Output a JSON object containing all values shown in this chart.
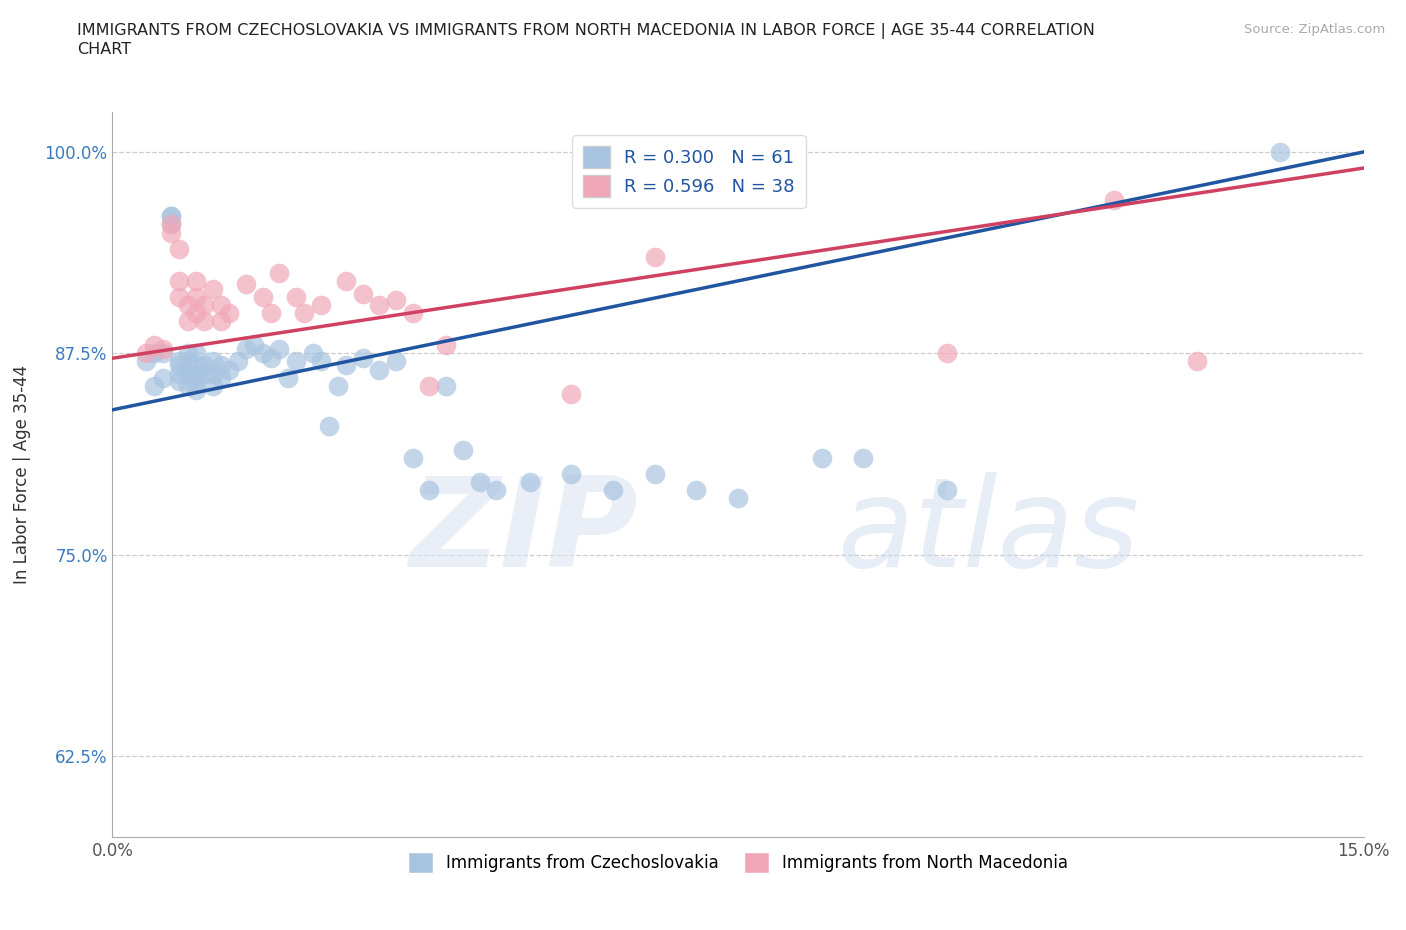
{
  "title": "IMMIGRANTS FROM CZECHOSLOVAKIA VS IMMIGRANTS FROM NORTH MACEDONIA IN LABOR FORCE | AGE 35-44 CORRELATION\nCHART",
  "source": "Source: ZipAtlas.com",
  "ylabel": "In Labor Force | Age 35-44",
  "xlim": [
    0.0,
    0.15
  ],
  "ylim": [
    0.575,
    1.025
  ],
  "yticks": [
    0.625,
    0.75,
    0.875,
    1.0
  ],
  "ytick_labels": [
    "62.5%",
    "75.0%",
    "87.5%",
    "100.0%"
  ],
  "xticks": [
    0.0,
    0.03,
    0.06,
    0.09,
    0.12,
    0.15
  ],
  "xtick_labels": [
    "0.0%",
    "",
    "",
    "",
    "",
    "15.0%"
  ],
  "blue_R": 0.3,
  "blue_N": 61,
  "pink_R": 0.596,
  "pink_N": 38,
  "blue_color": "#a8c4e0",
  "pink_color": "#f0a8b8",
  "blue_line_color": "#2255a0",
  "pink_line_color": "#d04060",
  "legend_text_color": "#2255a0",
  "blue_x": [
    0.004,
    0.005,
    0.005,
    0.006,
    0.006,
    0.007,
    0.007,
    0.007,
    0.008,
    0.008,
    0.008,
    0.008,
    0.009,
    0.009,
    0.009,
    0.009,
    0.01,
    0.01,
    0.01,
    0.01,
    0.01,
    0.011,
    0.011,
    0.012,
    0.012,
    0.012,
    0.013,
    0.013,
    0.014,
    0.015,
    0.016,
    0.017,
    0.018,
    0.019,
    0.02,
    0.021,
    0.022,
    0.024,
    0.025,
    0.026,
    0.027,
    0.028,
    0.03,
    0.032,
    0.034,
    0.036,
    0.038,
    0.04,
    0.042,
    0.044,
    0.046,
    0.05,
    0.055,
    0.06,
    0.065,
    0.07,
    0.075,
    0.085,
    0.09,
    0.1,
    0.14
  ],
  "blue_y": [
    0.87,
    0.875,
    0.855,
    0.875,
    0.86,
    0.96,
    0.955,
    0.96,
    0.87,
    0.868,
    0.862,
    0.858,
    0.875,
    0.87,
    0.862,
    0.855,
    0.875,
    0.868,
    0.862,
    0.858,
    0.852,
    0.868,
    0.862,
    0.87,
    0.862,
    0.855,
    0.868,
    0.86,
    0.865,
    0.87,
    0.878,
    0.88,
    0.875,
    0.872,
    0.878,
    0.86,
    0.87,
    0.875,
    0.87,
    0.83,
    0.855,
    0.868,
    0.872,
    0.865,
    0.87,
    0.81,
    0.79,
    0.855,
    0.815,
    0.795,
    0.79,
    0.795,
    0.8,
    0.79,
    0.8,
    0.79,
    0.785,
    0.81,
    0.81,
    0.79,
    1.0
  ],
  "pink_x": [
    0.004,
    0.005,
    0.006,
    0.007,
    0.007,
    0.008,
    0.008,
    0.008,
    0.009,
    0.009,
    0.01,
    0.01,
    0.01,
    0.011,
    0.011,
    0.012,
    0.013,
    0.013,
    0.014,
    0.016,
    0.018,
    0.019,
    0.02,
    0.022,
    0.023,
    0.025,
    0.028,
    0.03,
    0.032,
    0.034,
    0.036,
    0.038,
    0.04,
    0.055,
    0.065,
    0.1,
    0.12,
    0.13
  ],
  "pink_y": [
    0.875,
    0.88,
    0.878,
    0.955,
    0.95,
    0.94,
    0.92,
    0.91,
    0.905,
    0.895,
    0.92,
    0.91,
    0.9,
    0.905,
    0.895,
    0.915,
    0.905,
    0.895,
    0.9,
    0.918,
    0.91,
    0.9,
    0.925,
    0.91,
    0.9,
    0.905,
    0.92,
    0.912,
    0.905,
    0.908,
    0.9,
    0.855,
    0.88,
    0.85,
    0.935,
    0.875,
    0.97,
    0.87
  ],
  "blue_trendline_x": [
    0.0,
    0.15
  ],
  "blue_trendline_y": [
    0.84,
    1.0
  ],
  "pink_trendline_x": [
    0.0,
    0.15
  ],
  "pink_trendline_y": [
    0.872,
    0.99
  ]
}
